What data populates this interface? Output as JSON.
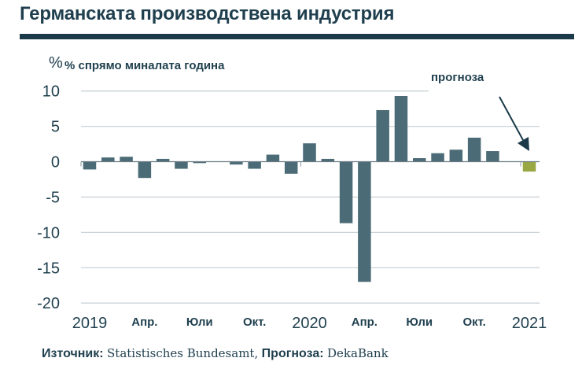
{
  "title": "Германската производствена индустрия",
  "unit_symbol": "%",
  "source": {
    "label": "Източник:",
    "source_text": "Statistisches Bundesamt,",
    "forecast_label": "Прогноза:",
    "forecast_text": "DekaBank"
  },
  "colors": {
    "bar": "#4b6b76",
    "forecast_bar": "#9aa844",
    "title_rule": "#1a3a4a",
    "grid": "#c9d3d8",
    "text": "#1f3f4e"
  },
  "chart_data": {
    "type": "bar",
    "title": "Германската производствена индустрия",
    "ylabel": "% спрямо миналата година",
    "xlabel": "",
    "ylim": [
      -20,
      10
    ],
    "yticks": [
      10,
      5,
      0,
      -5,
      -10,
      -15,
      -20
    ],
    "grid": true,
    "annotation": "прогноза",
    "x_tick_labels": [
      {
        "label": "2019",
        "index": 0,
        "style": "year"
      },
      {
        "label": "Апр.",
        "index": 3,
        "style": "month"
      },
      {
        "label": "Юли",
        "index": 6,
        "style": "month"
      },
      {
        "label": "Окт.",
        "index": 9,
        "style": "month"
      },
      {
        "label": "2020",
        "index": 12,
        "style": "year"
      },
      {
        "label": "Апр.",
        "index": 15,
        "style": "month"
      },
      {
        "label": "Юли",
        "index": 18,
        "style": "month"
      },
      {
        "label": "Окт.",
        "index": 21,
        "style": "month"
      },
      {
        "label": "2021",
        "index": 24,
        "style": "year"
      }
    ],
    "categories": [
      "2019-01",
      "2019-02",
      "2019-03",
      "2019-04",
      "2019-05",
      "2019-06",
      "2019-07",
      "2019-08",
      "2019-09",
      "2019-10",
      "2019-11",
      "2019-12",
      "2020-01",
      "2020-02",
      "2020-03",
      "2020-04",
      "2020-05",
      "2020-06",
      "2020-07",
      "2020-08",
      "2020-09",
      "2020-10",
      "2020-11",
      "2020-12",
      "2021-01"
    ],
    "series": [
      {
        "name": "actual",
        "values": [
          -1.1,
          0.6,
          0.7,
          -2.3,
          0.4,
          -1.0,
          -0.2,
          0.0,
          -0.4,
          -1.0,
          1.0,
          -1.7,
          2.6,
          0.4,
          -8.7,
          -17.0,
          7.3,
          9.3,
          0.5,
          1.2,
          1.7,
          3.4,
          1.5,
          null,
          null
        ]
      },
      {
        "name": "прогноза",
        "values": [
          null,
          null,
          null,
          null,
          null,
          null,
          null,
          null,
          null,
          null,
          null,
          null,
          null,
          null,
          null,
          null,
          null,
          null,
          null,
          null,
          null,
          null,
          null,
          null,
          -1.4
        ]
      }
    ]
  }
}
